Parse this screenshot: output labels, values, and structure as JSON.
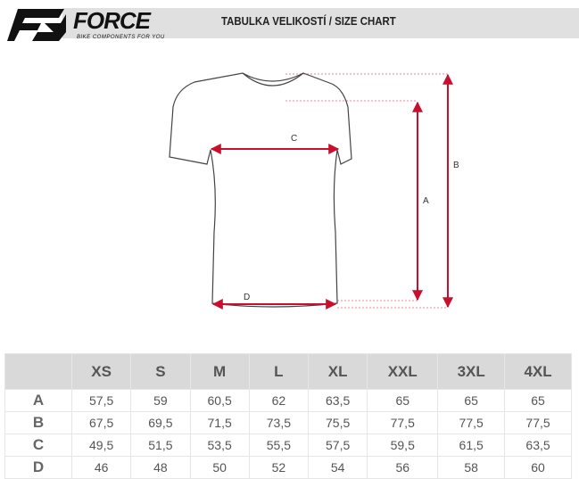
{
  "header": {
    "brand": "FORCE",
    "tagline": "BIKE COMPONENTS FOR YOU",
    "title": "TABULKA VELIKOSTÍ / SIZE CHART"
  },
  "diagram": {
    "labels": {
      "a": "A",
      "b": "B",
      "c": "C",
      "d": "D"
    },
    "arrow_color": "#c8102e"
  },
  "table": {
    "columns": [
      "XS",
      "S",
      "M",
      "L",
      "XL",
      "XXL",
      "3XL",
      "4XL"
    ],
    "rows": [
      {
        "label": "A",
        "values": [
          "57,5",
          "59",
          "60,5",
          "62",
          "63,5",
          "65",
          "65",
          "65"
        ]
      },
      {
        "label": "B",
        "values": [
          "67,5",
          "69,5",
          "71,5",
          "73,5",
          "75,5",
          "77,5",
          "77,5",
          "77,5"
        ]
      },
      {
        "label": "C",
        "values": [
          "49,5",
          "51,5",
          "53,5",
          "55,5",
          "57,5",
          "59,5",
          "61,5",
          "63,5"
        ]
      },
      {
        "label": "D",
        "values": [
          "46",
          "48",
          "50",
          "52",
          "54",
          "56",
          "58",
          "60"
        ]
      }
    ]
  }
}
